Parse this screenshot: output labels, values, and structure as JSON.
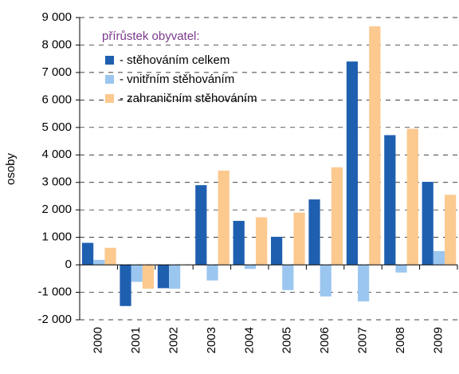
{
  "chart_data": {
    "type": "bar",
    "y_label": "osoby",
    "legend_title": "přírůstek obyvatel:",
    "categories": [
      "2000",
      "2001",
      "2002",
      "2003",
      "2004",
      "2005",
      "2006",
      "2007",
      "2008",
      "2009"
    ],
    "series": [
      {
        "name": "- stěhováním celkem",
        "color": "#1f5fb0",
        "values": [
          800,
          -1500,
          -850,
          2900,
          1600,
          1020,
          2380,
          7400,
          4720,
          3020
        ]
      },
      {
        "name": "- vnitřním stěhováním",
        "color": "#9bc6ef",
        "values": [
          180,
          -620,
          -870,
          -570,
          -150,
          -920,
          -1150,
          -1330,
          -280,
          500
        ]
      },
      {
        "name": "- zahraničním stěhováním",
        "color": "#fcc98f",
        "values": [
          620,
          -870,
          0,
          3430,
          1730,
          1900,
          3550,
          8680,
          4950,
          2550
        ]
      }
    ],
    "ylim": [
      -2000,
      9000
    ],
    "yticks": [
      {
        "value": -2000,
        "label": "-2 000"
      },
      {
        "value": -1000,
        "label": "-1 000"
      },
      0,
      {
        "value": 1000,
        "label": "1 000"
      },
      {
        "value": 2000,
        "label": "2 000"
      },
      {
        "value": 3000,
        "label": "3 000"
      },
      {
        "value": 4000,
        "label": "4 000"
      },
      {
        "value": 5000,
        "label": "5 000"
      },
      {
        "value": 6000,
        "label": "6 000"
      },
      {
        "value": 7000,
        "label": "7 000"
      },
      {
        "value": 8000,
        "label": "8 000"
      },
      {
        "value": 9000,
        "label": "9 000"
      }
    ],
    "grid": true
  }
}
